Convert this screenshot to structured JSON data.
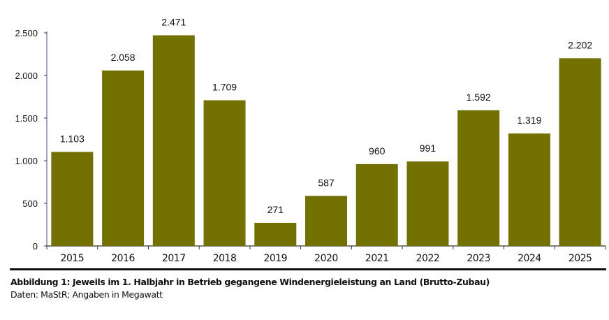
{
  "chart_data": {
    "type": "bar",
    "categories": [
      "2015",
      "2016",
      "2017",
      "2018",
      "2019",
      "2020",
      "2021",
      "2022",
      "2023",
      "2024",
      "2025"
    ],
    "values": [
      1103,
      2058,
      2471,
      1709,
      271,
      587,
      960,
      991,
      1592,
      1319,
      2202
    ],
    "data_labels": [
      "1.103",
      "2.058",
      "2.471",
      "1.709",
      "271",
      "587",
      "960",
      "991",
      "1.592",
      "1.319",
      "2.202"
    ],
    "yticks": [
      0,
      500,
      1000,
      1500,
      2000,
      2500
    ],
    "ytick_labels": [
      "0",
      "500",
      "1.000",
      "1.500",
      "2.000",
      "2.500"
    ],
    "ylim": [
      0,
      2500
    ],
    "grid": false,
    "bar_color": "#727000",
    "title": "",
    "xlabel": "",
    "ylabel": ""
  },
  "caption": "Abbildung 1: Jeweils im 1. Halbjahr in Betrieb gegangene Windenergieleistung an Land (Brutto-Zubau)",
  "source": "Daten: MaStR; Angaben in Megawatt"
}
